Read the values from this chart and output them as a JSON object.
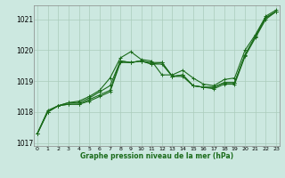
{
  "bg_color": "#cce8e0",
  "grid_color": "#aaccbb",
  "line_color": "#1a6b1a",
  "marker": "+",
  "x": [
    0,
    1,
    2,
    3,
    4,
    5,
    6,
    7,
    8,
    9,
    10,
    11,
    12,
    13,
    14,
    15,
    16,
    17,
    18,
    19,
    20,
    21,
    22,
    23
  ],
  "series": [
    [
      1017.3,
      1018.0,
      1018.2,
      1018.3,
      1018.35,
      1018.5,
      1018.7,
      1019.1,
      1019.75,
      1019.95,
      1019.7,
      1019.65,
      1019.2,
      1019.2,
      1019.35,
      1019.1,
      1018.9,
      1018.85,
      1019.05,
      1019.1,
      1020.0,
      1020.5,
      1021.1,
      1021.3
    ],
    [
      1017.3,
      1018.0,
      1018.2,
      1018.3,
      1018.3,
      1018.45,
      1018.65,
      1018.85,
      1019.65,
      1019.6,
      1019.65,
      1019.55,
      1019.6,
      1019.15,
      1019.2,
      1018.85,
      1018.8,
      1018.8,
      1018.95,
      1018.95,
      1019.85,
      1020.45,
      1021.05,
      1021.25
    ],
    [
      1017.3,
      1018.0,
      1018.2,
      1018.25,
      1018.25,
      1018.35,
      1018.5,
      1018.65,
      1019.6,
      1019.6,
      1019.65,
      1019.55,
      1019.55,
      1019.15,
      1019.15,
      1018.85,
      1018.8,
      1018.75,
      1018.9,
      1018.9,
      1019.8,
      1020.4,
      1021.0,
      1021.25
    ],
    [
      1017.3,
      1018.05,
      1018.2,
      1018.25,
      1018.25,
      1018.4,
      1018.55,
      1018.7,
      1019.65,
      1019.6,
      1019.65,
      1019.6,
      1019.6,
      1019.15,
      1019.2,
      1018.85,
      1018.8,
      1018.8,
      1018.95,
      1018.95,
      1019.85,
      1020.45,
      1021.05,
      1021.25
    ]
  ],
  "ylim": [
    1016.9,
    1021.45
  ],
  "yticks": [
    1017,
    1018,
    1019,
    1020,
    1021
  ],
  "xticks": [
    0,
    1,
    2,
    3,
    4,
    5,
    6,
    7,
    8,
    9,
    10,
    11,
    12,
    13,
    14,
    15,
    16,
    17,
    18,
    19,
    20,
    21,
    22,
    23
  ],
  "xlabel": "Graphe pression niveau de la mer (hPa)",
  "markersize": 3,
  "linewidth": 0.8
}
